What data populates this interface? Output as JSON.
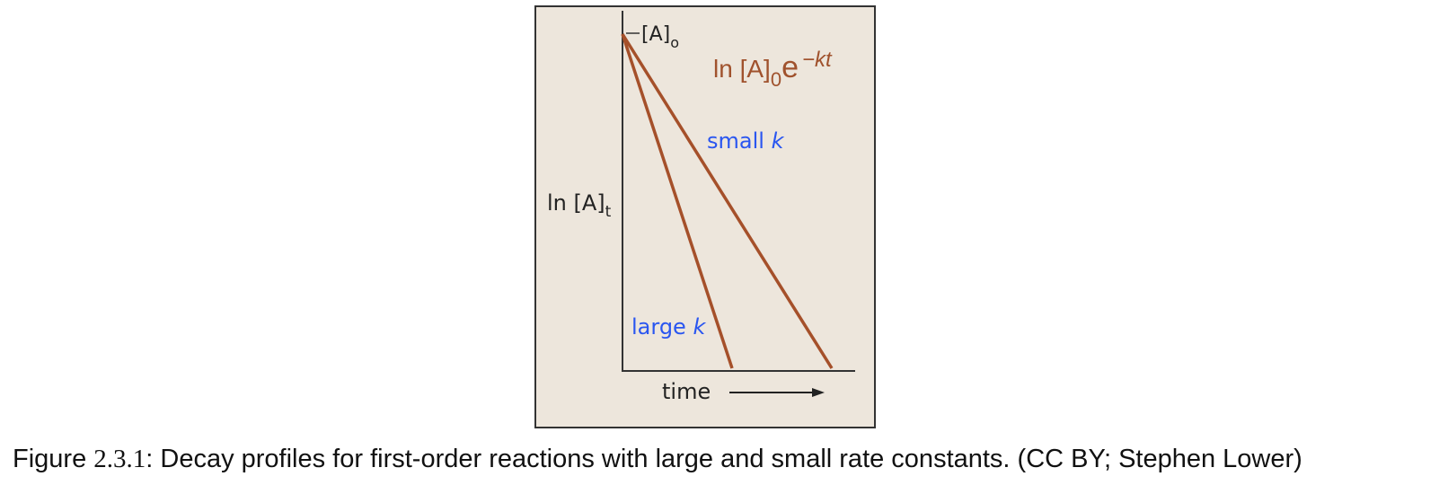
{
  "figure": {
    "initial_label": {
      "text": "[A]",
      "subscript": "o"
    },
    "equation": {
      "text": "ln [A]",
      "subscript": "0",
      "base": "e",
      "exponent": "−kt"
    },
    "lines": [
      {
        "label": {
          "text": "small",
          "variable": "k"
        }
      },
      {
        "label": {
          "text": "large",
          "variable": "k"
        }
      }
    ],
    "y_axis_label": {
      "text": "ln [A]",
      "subscript": "t"
    },
    "x_axis_label": "time"
  },
  "caption": {
    "prefix": "Figure ",
    "number": "2.3.1",
    "text": ": Decay profiles for first-order reactions with large and small rate constants. (CC BY; Stephen Lower)"
  }
}
